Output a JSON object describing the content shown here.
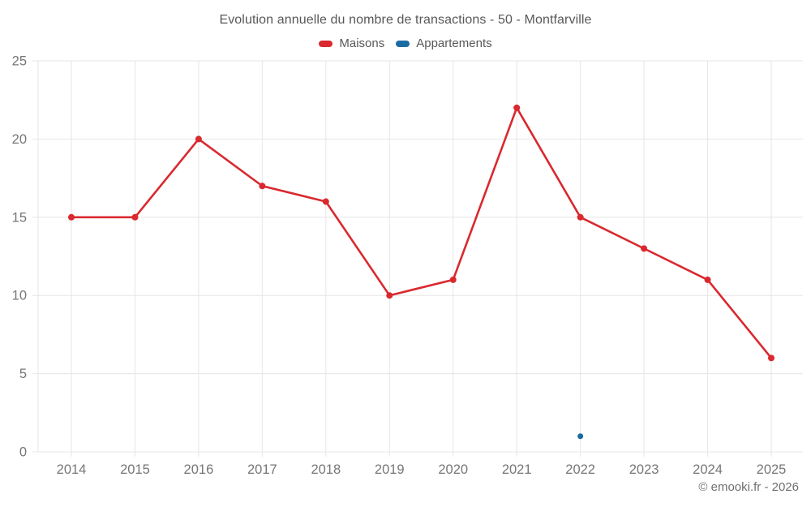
{
  "chart": {
    "title": "Evolution annuelle du nombre de transactions - 50 - Montfarville",
    "watermark": "© emooki.fr - 2026"
  },
  "chart_data": {
    "type": "line",
    "title": "Evolution annuelle du nombre de transactions - 50 - Montfarville",
    "categories": [
      "2014",
      "2015",
      "2016",
      "2017",
      "2018",
      "2019",
      "2020",
      "2021",
      "2022",
      "2023",
      "2024",
      "2025"
    ],
    "series": [
      {
        "name": "Maisons",
        "color": "#d9292f",
        "point_radius": 4,
        "values": [
          15,
          15,
          20,
          17,
          16,
          10,
          11,
          22,
          15,
          13,
          11,
          6
        ]
      },
      {
        "name": "Appartements",
        "color": "#1b6ba3",
        "point_radius": 3.5,
        "values": [
          null,
          null,
          null,
          null,
          null,
          null,
          null,
          null,
          1,
          null,
          null,
          null
        ]
      }
    ],
    "xlabel": "",
    "ylabel": "",
    "ylim": [
      0,
      25
    ],
    "yticks": [
      0,
      5,
      10,
      15,
      20,
      25
    ],
    "grid": true,
    "legend_position": "top",
    "colors": {
      "gridline": "#e6e6e6",
      "axis_label": "#767676",
      "title_text": "#58585a"
    }
  }
}
